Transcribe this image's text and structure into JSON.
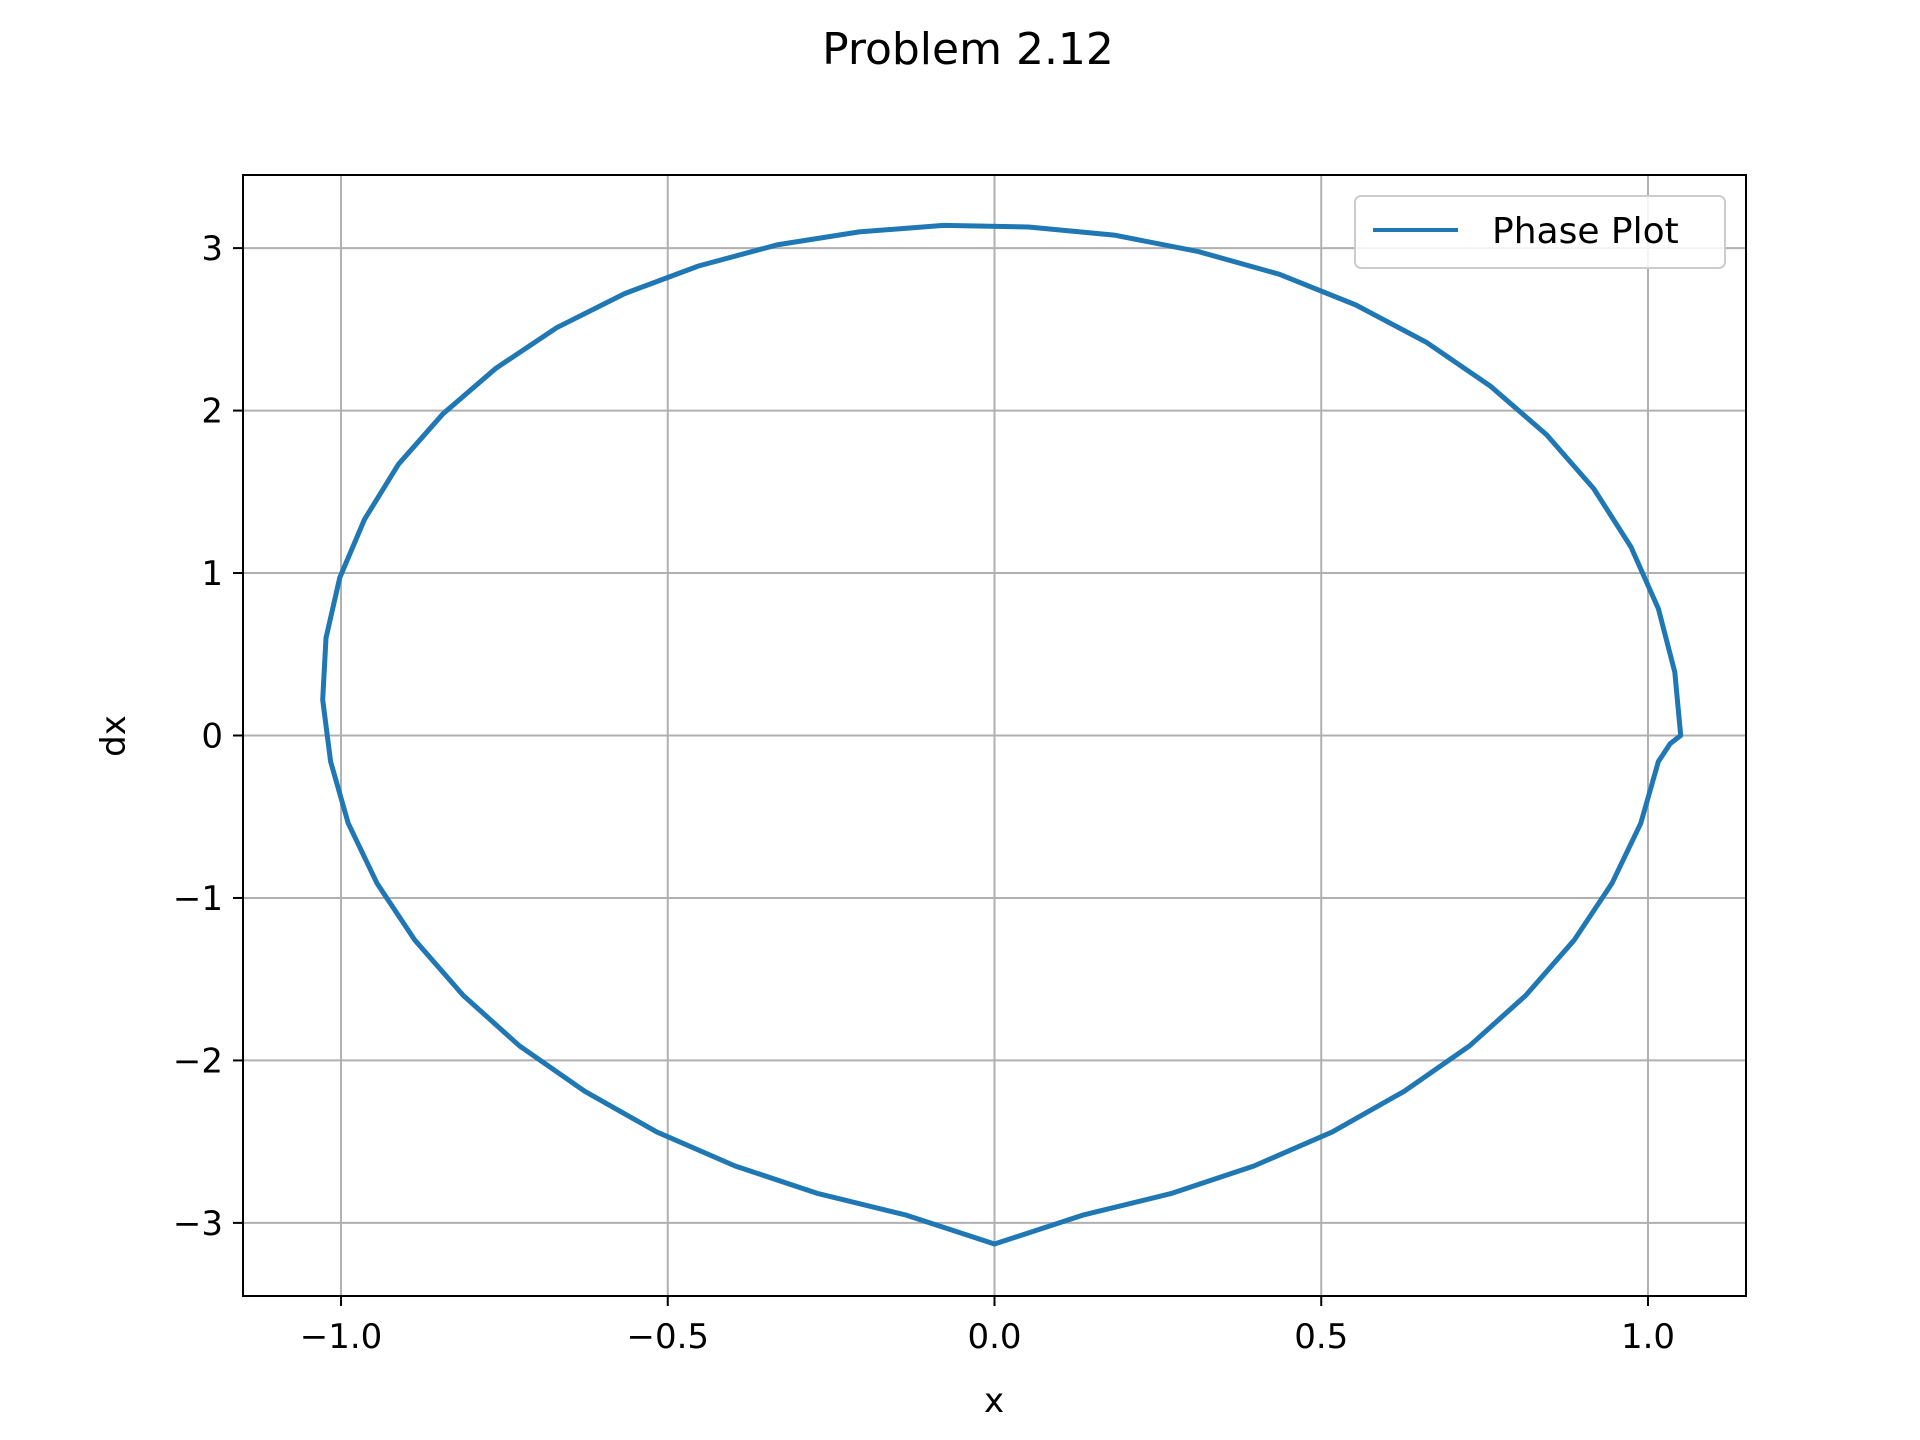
{
  "chart_data": {
    "type": "line",
    "title": "Problem 2.12",
    "xlabel": "x",
    "ylabel": "dx",
    "xlim": [
      -1.15,
      1.15
    ],
    "ylim": [
      -3.45,
      3.45
    ],
    "xticks": [
      -1.0,
      -0.5,
      0.0,
      0.5,
      1.0
    ],
    "xtick_labels": [
      "−1.0",
      "−0.5",
      "0.0",
      "0.5",
      "1.0"
    ],
    "yticks": [
      -3,
      -2,
      -1,
      0,
      1,
      2,
      3
    ],
    "ytick_labels": [
      "−3",
      "−2",
      "−1",
      "0",
      "1",
      "2",
      "3"
    ],
    "grid": true,
    "legend_position": "top-right",
    "series": [
      {
        "name": "Phase Plot",
        "color": "#1f77b4",
        "x": [
          1.05,
          1.041,
          1.016,
          0.974,
          0.917,
          0.845,
          0.759,
          0.661,
          0.553,
          0.435,
          0.311,
          0.183,
          0.052,
          -0.078,
          -0.207,
          -0.333,
          -0.453,
          -0.566,
          -0.67,
          -0.763,
          -0.844,
          -0.912,
          -0.964,
          -1.002,
          -1.023,
          -1.028,
          -1.016,
          -0.989,
          -0.945,
          -0.887,
          -0.813,
          -0.727,
          -0.627,
          -0.517,
          -0.397,
          -0.27,
          -0.137,
          0.0,
          0.137,
          0.27,
          0.397,
          0.517,
          0.627,
          0.727,
          0.813,
          0.887,
          0.945,
          0.989,
          1.016,
          1.034,
          1.05
        ],
        "y": [
          0.0,
          0.39,
          0.78,
          1.16,
          1.52,
          1.85,
          2.15,
          2.42,
          2.65,
          2.84,
          2.98,
          3.08,
          3.13,
          3.14,
          3.1,
          3.02,
          2.89,
          2.72,
          2.51,
          2.26,
          1.98,
          1.67,
          1.33,
          0.97,
          0.6,
          0.22,
          -0.16,
          -0.54,
          -0.91,
          -1.26,
          -1.6,
          -1.91,
          -2.19,
          -2.44,
          -2.65,
          -2.82,
          -2.95,
          -3.13,
          -2.95,
          -2.82,
          -2.65,
          -2.44,
          -2.19,
          -1.91,
          -1.6,
          -1.26,
          -0.91,
          -0.54,
          -0.16,
          -0.05,
          0.0
        ]
      }
    ]
  }
}
